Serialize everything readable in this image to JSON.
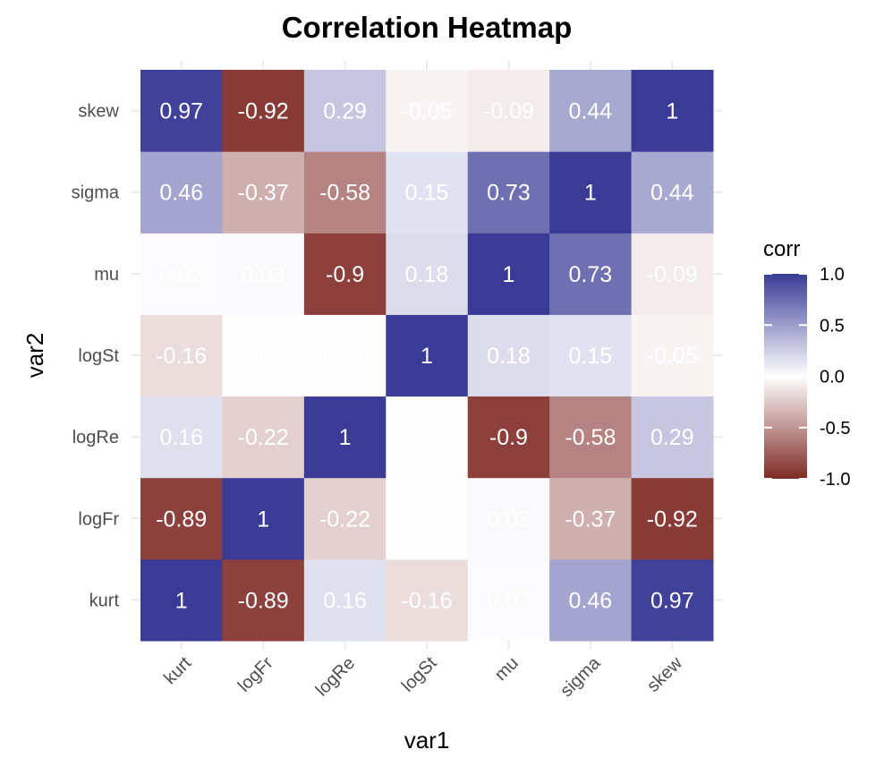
{
  "chart_data": {
    "type": "heatmap",
    "title": "Correlation Heatmap",
    "xlabel": "var1",
    "ylabel": "var2",
    "x_categories": [
      "kurt",
      "logFr",
      "logRe",
      "logSt",
      "mu",
      "sigma",
      "skew"
    ],
    "y_categories": [
      "kurt",
      "logFr",
      "logRe",
      "logSt",
      "mu",
      "sigma",
      "skew"
    ],
    "cells": [
      {
        "x": "kurt",
        "y": "kurt",
        "value": 1,
        "label": "1"
      },
      {
        "x": "logFr",
        "y": "kurt",
        "value": -0.89,
        "label": "-0.89"
      },
      {
        "x": "logRe",
        "y": "kurt",
        "value": 0.16,
        "label": "0.16"
      },
      {
        "x": "logSt",
        "y": "kurt",
        "value": -0.16,
        "label": "-0.16"
      },
      {
        "x": "mu",
        "y": "kurt",
        "value": 0.02,
        "label": "0.02"
      },
      {
        "x": "sigma",
        "y": "kurt",
        "value": 0.46,
        "label": "0.46"
      },
      {
        "x": "skew",
        "y": "kurt",
        "value": 0.97,
        "label": "0.97"
      },
      {
        "x": "kurt",
        "y": "logFr",
        "value": -0.89,
        "label": "-0.89"
      },
      {
        "x": "logFr",
        "y": "logFr",
        "value": 1,
        "label": "1"
      },
      {
        "x": "logRe",
        "y": "logFr",
        "value": -0.22,
        "label": "-0.22"
      },
      {
        "x": "logSt",
        "y": "logFr",
        "value": 0.01,
        "label": "0.01"
      },
      {
        "x": "mu",
        "y": "logFr",
        "value": 0.03,
        "label": "0.03"
      },
      {
        "x": "sigma",
        "y": "logFr",
        "value": -0.37,
        "label": "-0.37"
      },
      {
        "x": "skew",
        "y": "logFr",
        "value": -0.92,
        "label": "-0.92"
      },
      {
        "x": "kurt",
        "y": "logRe",
        "value": 0.16,
        "label": "0.16"
      },
      {
        "x": "logFr",
        "y": "logRe",
        "value": -0.22,
        "label": "-0.22"
      },
      {
        "x": "logRe",
        "y": "logRe",
        "value": 1,
        "label": "1"
      },
      {
        "x": "logSt",
        "y": "logRe",
        "value": 0.01,
        "label": "0.01"
      },
      {
        "x": "mu",
        "y": "logRe",
        "value": -0.9,
        "label": "-0.9"
      },
      {
        "x": "sigma",
        "y": "logRe",
        "value": -0.58,
        "label": "-0.58"
      },
      {
        "x": "skew",
        "y": "logRe",
        "value": 0.29,
        "label": "0.29"
      },
      {
        "x": "kurt",
        "y": "logSt",
        "value": -0.16,
        "label": "-0.16"
      },
      {
        "x": "logFr",
        "y": "logSt",
        "value": 0.01,
        "label": "0.01"
      },
      {
        "x": "logRe",
        "y": "logSt",
        "value": 0.01,
        "label": "0.01"
      },
      {
        "x": "logSt",
        "y": "logSt",
        "value": 1,
        "label": "1"
      },
      {
        "x": "mu",
        "y": "logSt",
        "value": 0.18,
        "label": "0.18"
      },
      {
        "x": "sigma",
        "y": "logSt",
        "value": 0.15,
        "label": "0.15"
      },
      {
        "x": "skew",
        "y": "logSt",
        "value": -0.05,
        "label": "-0.05"
      },
      {
        "x": "kurt",
        "y": "mu",
        "value": 0.02,
        "label": "0.02"
      },
      {
        "x": "logFr",
        "y": "mu",
        "value": 0.03,
        "label": "0.03"
      },
      {
        "x": "logRe",
        "y": "mu",
        "value": -0.9,
        "label": "-0.9"
      },
      {
        "x": "logSt",
        "y": "mu",
        "value": 0.18,
        "label": "0.18"
      },
      {
        "x": "mu",
        "y": "mu",
        "value": 1,
        "label": "1"
      },
      {
        "x": "sigma",
        "y": "mu",
        "value": 0.73,
        "label": "0.73"
      },
      {
        "x": "skew",
        "y": "mu",
        "value": -0.09,
        "label": "-0.09"
      },
      {
        "x": "kurt",
        "y": "sigma",
        "value": 0.46,
        "label": "0.46"
      },
      {
        "x": "logFr",
        "y": "sigma",
        "value": -0.37,
        "label": "-0.37"
      },
      {
        "x": "logRe",
        "y": "sigma",
        "value": -0.58,
        "label": "-0.58"
      },
      {
        "x": "logSt",
        "y": "sigma",
        "value": 0.15,
        "label": "0.15"
      },
      {
        "x": "mu",
        "y": "sigma",
        "value": 0.73,
        "label": "0.73"
      },
      {
        "x": "sigma",
        "y": "sigma",
        "value": 1,
        "label": "1"
      },
      {
        "x": "skew",
        "y": "sigma",
        "value": 0.44,
        "label": "0.44"
      },
      {
        "x": "kurt",
        "y": "skew",
        "value": 0.97,
        "label": "0.97"
      },
      {
        "x": "logFr",
        "y": "skew",
        "value": -0.92,
        "label": "-0.92"
      },
      {
        "x": "logRe",
        "y": "skew",
        "value": 0.29,
        "label": "0.29"
      },
      {
        "x": "logSt",
        "y": "skew",
        "value": -0.05,
        "label": "-0.05"
      },
      {
        "x": "mu",
        "y": "skew",
        "value": -0.09,
        "label": "-0.09"
      },
      {
        "x": "sigma",
        "y": "skew",
        "value": 0.44,
        "label": "0.44"
      },
      {
        "x": "skew",
        "y": "skew",
        "value": 1,
        "label": "1"
      }
    ],
    "color_scale": {
      "low_color": "#7f2a25",
      "mid_color": "#ffffff",
      "high_color": "#3a3b96",
      "limits": [
        -1,
        1
      ]
    },
    "legend": {
      "title": "corr",
      "placement": "right",
      "ticks": [
        "1.0",
        "0.5",
        "0.0",
        "-0.5",
        "-1.0"
      ],
      "tick_values": [
        1.0,
        0.5,
        0.0,
        -0.5,
        -1.0
      ]
    },
    "grid": true
  }
}
